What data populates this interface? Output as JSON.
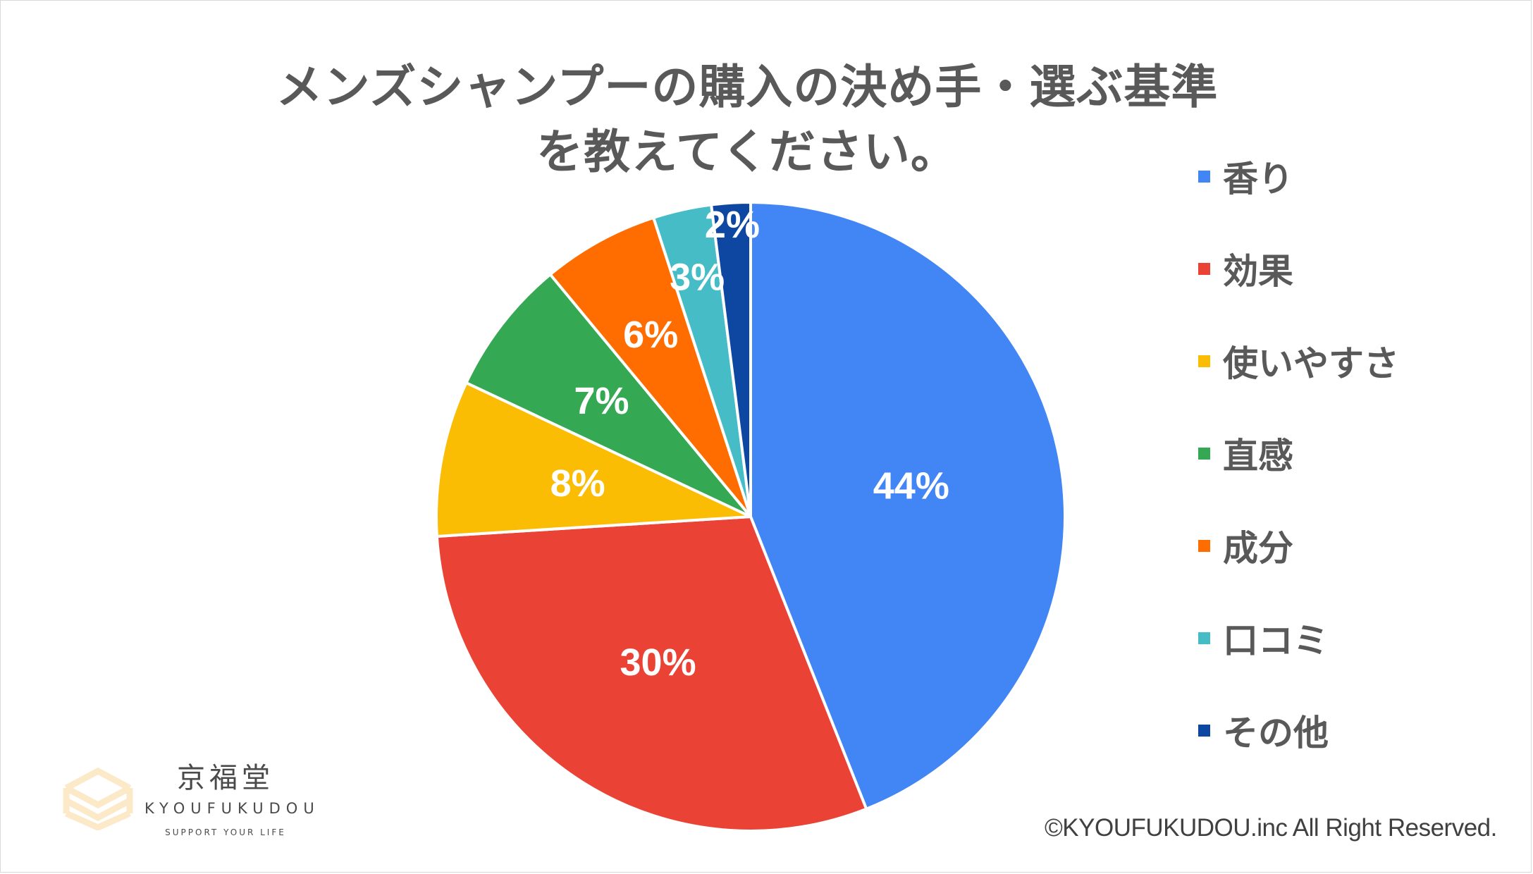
{
  "chart_data": {
    "type": "pie",
    "title_lines": [
      "メンズシャンプーの購入の決め手・選ぶ基準",
      "を教えてください。"
    ],
    "slices": [
      {
        "name": "香り",
        "value": 44,
        "label": "44%",
        "color": "#4285f4"
      },
      {
        "name": "効果",
        "value": 30,
        "label": "30%",
        "color": "#ea4335"
      },
      {
        "name": "使いやすさ",
        "value": 8,
        "label": "8%",
        "color": "#fbbc04"
      },
      {
        "name": "直感",
        "value": 7,
        "label": "7%",
        "color": "#34a853"
      },
      {
        "name": "成分",
        "value": 6,
        "label": "6%",
        "color": "#ff6d01"
      },
      {
        "name": "口コミ",
        "value": 3,
        "label": "3%",
        "color": "#46bdc6"
      },
      {
        "name": "その他",
        "value": 2,
        "label": "2%",
        "color": "#0d47a1"
      }
    ],
    "legend_position": "right"
  },
  "copyright": "©KYOUFUKUDOU.inc All Right Reserved.",
  "brand": {
    "name_ja": "京福堂",
    "name_en": "KYOUFUKUDOU",
    "tagline": "SUPPORT YOUR LIFE"
  }
}
